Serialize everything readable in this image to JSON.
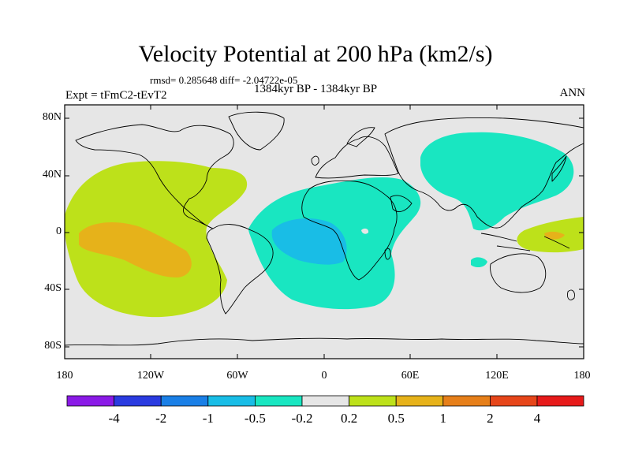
{
  "map": {
    "title": "Velocity Potential at 200 hPa (km2/s)",
    "stats": "rmsd= 0.285648 diff= -2.04722e-05",
    "period": "1384kyr BP - 1384kyr BP",
    "experiment": "Expt = tFmC2-tEvT2",
    "season": "ANN",
    "lat_labels": [
      "80N",
      "40N",
      "0",
      "40S",
      "80S"
    ],
    "lon_labels": [
      "180",
      "120W",
      "60W",
      "0",
      "60E",
      "120E",
      "180"
    ],
    "extent": {
      "lon": [
        -180,
        180
      ],
      "lat": [
        -90,
        90
      ]
    },
    "background_color": "#e6e6e6"
  },
  "colorbar": {
    "labels": [
      "-4",
      "-2",
      "-1",
      "-0.5",
      "-0.2",
      "0.2",
      "0.5",
      "1",
      "2",
      "4"
    ],
    "colors": [
      "#8a1ae6",
      "#2a3be0",
      "#1a7fe6",
      "#19bde6",
      "#19e6c1",
      "#e6e6e6",
      "#bde11a",
      "#e6b21a",
      "#e67f1a",
      "#e6461a",
      "#e61a1a"
    ]
  }
}
